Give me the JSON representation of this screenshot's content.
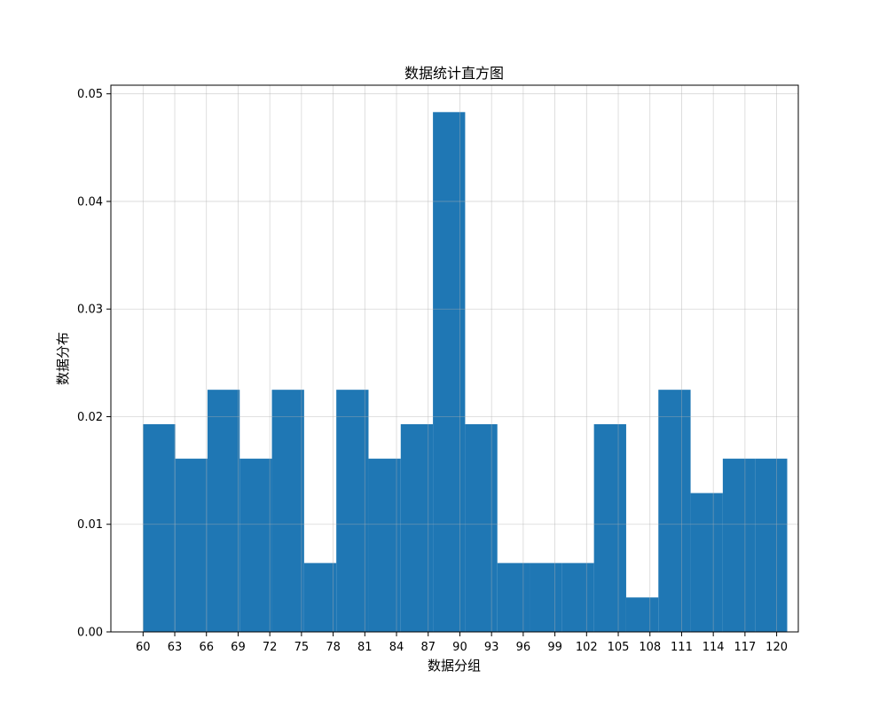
{
  "chart_data": {
    "type": "bar",
    "title": "数据统计直方图",
    "xlabel": "数据分组",
    "ylabel": "数据分布",
    "xlim": [
      56.95,
      122.05
    ],
    "ylim": [
      0,
      0.0508
    ],
    "x_ticks": [
      "60",
      "63",
      "66",
      "69",
      "72",
      "75",
      "78",
      "81",
      "84",
      "87",
      "90",
      "93",
      "96",
      "99",
      "102",
      "105",
      "108",
      "111",
      "114",
      "117",
      "120"
    ],
    "y_ticks": [
      "0.00",
      "0.01",
      "0.02",
      "0.03",
      "0.04",
      "0.05"
    ],
    "grid": true,
    "bar_color": "#1f77b4",
    "bins": [
      {
        "x0": 60.0,
        "x1": 63.05,
        "value": 0.0193
      },
      {
        "x0": 63.05,
        "x1": 66.1,
        "value": 0.0161
      },
      {
        "x0": 66.1,
        "x1": 69.15,
        "value": 0.0225
      },
      {
        "x0": 69.15,
        "x1": 72.2,
        "value": 0.0161
      },
      {
        "x0": 72.2,
        "x1": 75.25,
        "value": 0.0225
      },
      {
        "x0": 75.25,
        "x1": 78.3,
        "value": 0.0064
      },
      {
        "x0": 78.3,
        "x1": 81.35,
        "value": 0.0225
      },
      {
        "x0": 81.35,
        "x1": 84.4,
        "value": 0.0161
      },
      {
        "x0": 84.4,
        "x1": 87.45,
        "value": 0.0193
      },
      {
        "x0": 87.45,
        "x1": 90.5,
        "value": 0.0483
      },
      {
        "x0": 90.5,
        "x1": 93.55,
        "value": 0.0193
      },
      {
        "x0": 93.55,
        "x1": 96.6,
        "value": 0.0064
      },
      {
        "x0": 96.6,
        "x1": 99.65,
        "value": 0.0064
      },
      {
        "x0": 99.65,
        "x1": 102.7,
        "value": 0.0064
      },
      {
        "x0": 102.7,
        "x1": 105.75,
        "value": 0.0193
      },
      {
        "x0": 105.75,
        "x1": 108.8,
        "value": 0.0032
      },
      {
        "x0": 108.8,
        "x1": 111.85,
        "value": 0.0225
      },
      {
        "x0": 111.85,
        "x1": 114.9,
        "value": 0.0129
      },
      {
        "x0": 114.9,
        "x1": 117.95,
        "value": 0.0161
      },
      {
        "x0": 117.95,
        "x1": 121.0,
        "value": 0.0161
      }
    ]
  }
}
